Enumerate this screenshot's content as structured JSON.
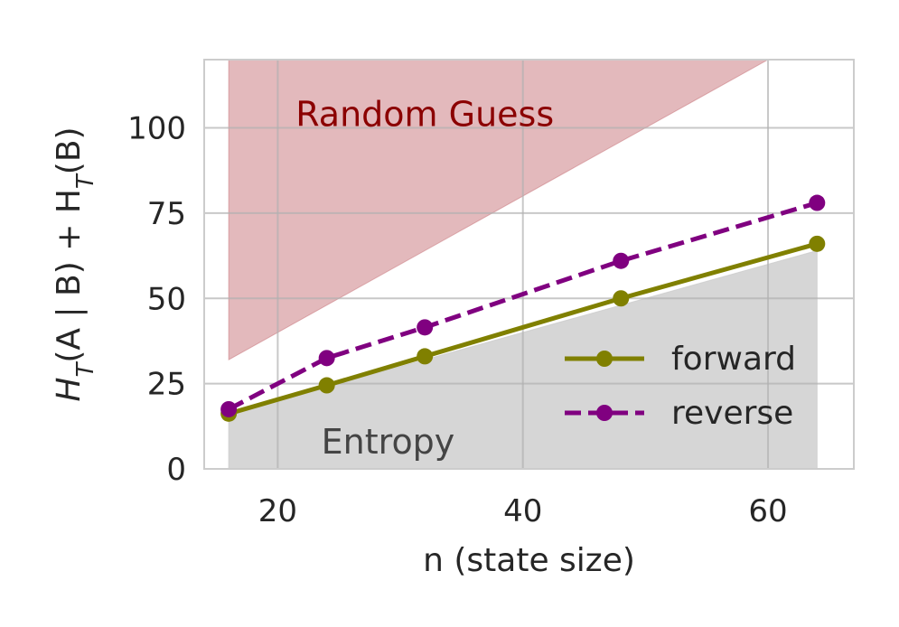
{
  "chart_data": {
    "type": "line",
    "xlabel": "n (state size)",
    "ylabel": "H_T(A | B) + H_T(B)",
    "xlim": [
      14,
      67
    ],
    "ylim": [
      0,
      120
    ],
    "xticks": [
      20,
      40,
      60
    ],
    "yticks": [
      0,
      25,
      50,
      75,
      100
    ],
    "grid": true,
    "legend_placement": "lower-right",
    "series": [
      {
        "name": "forward",
        "x": [
          16,
          24,
          32,
          48,
          64
        ],
        "y": [
          16.2,
          24.5,
          33,
          50,
          66
        ],
        "color": "#808000",
        "dash": "solid"
      },
      {
        "name": "reverse",
        "x": [
          16,
          24,
          32,
          48,
          64
        ],
        "y": [
          17.5,
          32.5,
          41.5,
          61,
          78
        ],
        "color": "#800080",
        "dash": "dashed"
      }
    ],
    "regions": [
      {
        "label": "Random Guess",
        "polygon": [
          [
            16,
            32
          ],
          [
            16,
            120
          ],
          [
            60,
            120
          ]
        ],
        "fill": "#c0636b",
        "opacity": 0.45,
        "label_color": "#8b0000",
        "label_pos": [
          32,
          104
        ]
      },
      {
        "label": "Entropy",
        "polygon": [
          [
            16,
            0
          ],
          [
            16,
            16
          ],
          [
            64,
            64
          ],
          [
            64,
            0
          ]
        ],
        "fill": "#cccccc",
        "opacity": 0.8,
        "label_color": "#444444",
        "label_pos": [
          29,
          8
        ]
      }
    ]
  }
}
